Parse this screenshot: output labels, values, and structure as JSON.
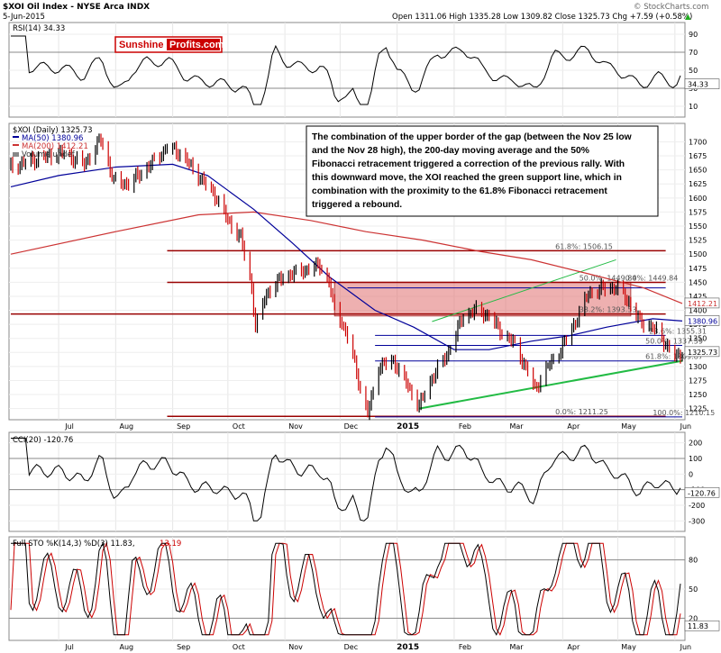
{
  "header": {
    "title": "$XOI Oil Index - NYSE Arca INDX",
    "date": "5-Jun-2015",
    "ohlc": "Open 1311.06  High 1335.28  Low 1309.82  Close 1325.73  Chg +7.59 (+0.58%)",
    "ohlc_arrow": "▲",
    "credit": "© StockCharts.com"
  },
  "logo": {
    "part1": "Sunshine",
    "part2": "Profits.com"
  },
  "colors": {
    "price_up": "#000000",
    "price_down": "#cc0000",
    "ma50": "#000099",
    "ma200": "#cc3333",
    "support": "#22bb44",
    "fib_line": "#990000",
    "gap_fill": "#e07070",
    "osc_fill_up": "#336633",
    "osc_fill_down": "#8b3a3a"
  },
  "rsi": {
    "label": "RSI(14) 34.33",
    "current_tag": "34.33",
    "ticks": [
      "90",
      "70",
      "50",
      "30",
      "10"
    ]
  },
  "price": {
    "legend_title": "$XOI (Daily) 1325.73",
    "legend_ma50": "MA(50) 1380.96",
    "legend_ma200": "MA(200) 1412.21",
    "legend_volume": "Volume undef",
    "tag_ma200": "1412.21",
    "tag_ma50": "1380.96",
    "tag_close": "1325.73",
    "ticks": [
      "1700",
      "1675",
      "1650",
      "1625",
      "1600",
      "1575",
      "1550",
      "1525",
      "1500",
      "1475",
      "1450",
      "1425",
      "1400",
      "1375",
      "1350",
      "1325",
      "1300",
      "1275",
      "1250",
      "1225"
    ],
    "fib_labels": {
      "f618a": "61.8%: 1506.15",
      "f500a": "50.0%: 1449.84",
      "f382a": "38.2%: 1393.53",
      "f236": "23.6%: 1355.31",
      "f500b": "50.0%: 1337.59",
      "f618b": "61.8%: 1309.87",
      "f00a": "0.0%: 1211.25",
      "f00b": "0.0%: 1449.84",
      "f100": "100.0%: 1210.15"
    }
  },
  "annotation": {
    "lines": [
      "The combination of the upper border of the gap (between the Nov 25 low",
      "and the Nov 28 high), the 200-day moving average and the 50%",
      "Fibonacci retracement triggered a correction of the previous rally. With",
      "this downward move, the XOI reached the green support line, which in",
      "combination with the proximity to the 61.8% Fibonacci retracement",
      "triggered a rebound."
    ]
  },
  "cci": {
    "label": "CCI(20) -120.76",
    "current_tag": "-120.76",
    "ticks": [
      "200",
      "100",
      "0",
      "-100",
      "-200",
      "-300"
    ]
  },
  "sto": {
    "label_main": "Full STO %K(14,3) %D(3) 11.83,",
    "label_d": "13.19",
    "current_tag": "11.83",
    "ticks": [
      "80",
      "50",
      "20"
    ]
  },
  "x_axis": {
    "labels": [
      "Jul",
      "Aug",
      "Sep",
      "Oct",
      "Nov",
      "Dec",
      "2015",
      "Feb",
      "Mar",
      "Apr",
      "May",
      "Jun"
    ]
  },
  "chart_data": {
    "type": "line",
    "title": "$XOI Oil Index - NYSE Arca INDX",
    "x_range": [
      "2014-06-05",
      "2015-06-05"
    ],
    "ylim": [
      1210,
      1720
    ],
    "series": [
      {
        "name": "$XOI (Daily) 1325.73",
        "points": [
          [
            "2014-06-05",
            1655
          ],
          [
            "2014-06-20",
            1670
          ],
          [
            "2014-07-03",
            1680
          ],
          [
            "2014-07-15",
            1660
          ],
          [
            "2014-07-24",
            1705
          ],
          [
            "2014-07-31",
            1630
          ],
          [
            "2014-08-08",
            1625
          ],
          [
            "2014-08-20",
            1660
          ],
          [
            "2014-08-29",
            1690
          ],
          [
            "2014-09-05",
            1680
          ],
          [
            "2014-09-15",
            1640
          ],
          [
            "2014-09-25",
            1600
          ],
          [
            "2014-10-01",
            1560
          ],
          [
            "2014-10-08",
            1530
          ],
          [
            "2014-10-14",
            1440
          ],
          [
            "2014-10-16",
            1370
          ],
          [
            "2014-10-22",
            1430
          ],
          [
            "2014-10-31",
            1460
          ],
          [
            "2014-11-10",
            1470
          ],
          [
            "2014-11-20",
            1480
          ],
          [
            "2014-11-25",
            1450
          ],
          [
            "2014-11-28",
            1400
          ],
          [
            "2014-12-02",
            1380
          ],
          [
            "2014-12-08",
            1320
          ],
          [
            "2014-12-12",
            1260
          ],
          [
            "2014-12-16",
            1215
          ],
          [
            "2014-12-22",
            1300
          ],
          [
            "2014-12-30",
            1310
          ],
          [
            "2015-01-06",
            1270
          ],
          [
            "2015-01-13",
            1230
          ],
          [
            "2015-01-20",
            1280
          ],
          [
            "2015-01-28",
            1320
          ],
          [
            "2015-02-06",
            1390
          ],
          [
            "2015-02-13",
            1400
          ],
          [
            "2015-02-20",
            1390
          ],
          [
            "2015-02-27",
            1360
          ],
          [
            "2015-03-06",
            1340
          ],
          [
            "2015-03-13",
            1290
          ],
          [
            "2015-03-17",
            1260
          ],
          [
            "2015-03-24",
            1300
          ],
          [
            "2015-03-31",
            1330
          ],
          [
            "2015-04-08",
            1380
          ],
          [
            "2015-04-15",
            1430
          ],
          [
            "2015-04-24",
            1440
          ],
          [
            "2015-04-30",
            1440
          ],
          [
            "2015-05-06",
            1420
          ],
          [
            "2015-05-13",
            1380
          ],
          [
            "2015-05-20",
            1370
          ],
          [
            "2015-05-27",
            1340
          ],
          [
            "2015-06-02",
            1315
          ],
          [
            "2015-06-05",
            1325.73
          ]
        ]
      },
      {
        "name": "MA(50) 1380.96",
        "points": [
          [
            "2014-06-05",
            1620
          ],
          [
            "2014-07-01",
            1640
          ],
          [
            "2014-08-01",
            1655
          ],
          [
            "2014-09-01",
            1660
          ],
          [
            "2014-09-20",
            1640
          ],
          [
            "2014-10-15",
            1580
          ],
          [
            "2014-11-05",
            1520
          ],
          [
            "2014-11-25",
            1460
          ],
          [
            "2014-12-20",
            1400
          ],
          [
            "2015-01-10",
            1370
          ],
          [
            "2015-02-01",
            1330
          ],
          [
            "2015-02-20",
            1330
          ],
          [
            "2015-03-15",
            1345
          ],
          [
            "2015-04-05",
            1355
          ],
          [
            "2015-04-25",
            1370
          ],
          [
            "2015-05-20",
            1385
          ],
          [
            "2015-06-05",
            1380.96
          ]
        ]
      },
      {
        "name": "MA(200) 1412.21",
        "points": [
          [
            "2014-06-05",
            1500
          ],
          [
            "2014-08-01",
            1540
          ],
          [
            "2014-09-15",
            1570
          ],
          [
            "2014-10-15",
            1575
          ],
          [
            "2014-11-15",
            1560
          ],
          [
            "2014-12-15",
            1540
          ],
          [
            "2015-01-15",
            1525
          ],
          [
            "2015-02-15",
            1505
          ],
          [
            "2015-03-15",
            1490
          ],
          [
            "2015-04-15",
            1465
          ],
          [
            "2015-05-15",
            1440
          ],
          [
            "2015-06-05",
            1412.21
          ]
        ]
      }
    ],
    "fibonacci_levels": [
      {
        "label": "61.8%: 1506.15",
        "value": 1506.15
      },
      {
        "label": "50.0%: 1449.84",
        "value": 1449.84
      },
      {
        "label": "38.2%: 1393.53",
        "value": 1393.53
      },
      {
        "label": "23.6%: 1355.31",
        "value": 1355.31
      },
      {
        "label": "50.0%: 1337.59",
        "value": 1337.59
      },
      {
        "label": "61.8%: 1309.87",
        "value": 1309.87
      },
      {
        "label": "0.0%: 1211.25",
        "value": 1211.25
      },
      {
        "label": "100.0%: 1210.15",
        "value": 1210.15
      }
    ],
    "gap_zone": {
      "from": 1390,
      "to": 1450
    },
    "support_line": [
      [
        "2015-01-13",
        1225
      ],
      [
        "2015-06-05",
        1310
      ]
    ],
    "upper_channel_line": [
      [
        "2015-01-20",
        1380
      ],
      [
        "2015-04-30",
        1490
      ]
    ],
    "rsi": {
      "current": 34.33,
      "ylim": [
        0,
        100
      ]
    },
    "cci": {
      "current": -120.76,
      "ylim": [
        -350,
        250
      ]
    },
    "stochastic": {
      "k": 11.83,
      "d": 13.19,
      "ylim": [
        0,
        100
      ]
    }
  }
}
